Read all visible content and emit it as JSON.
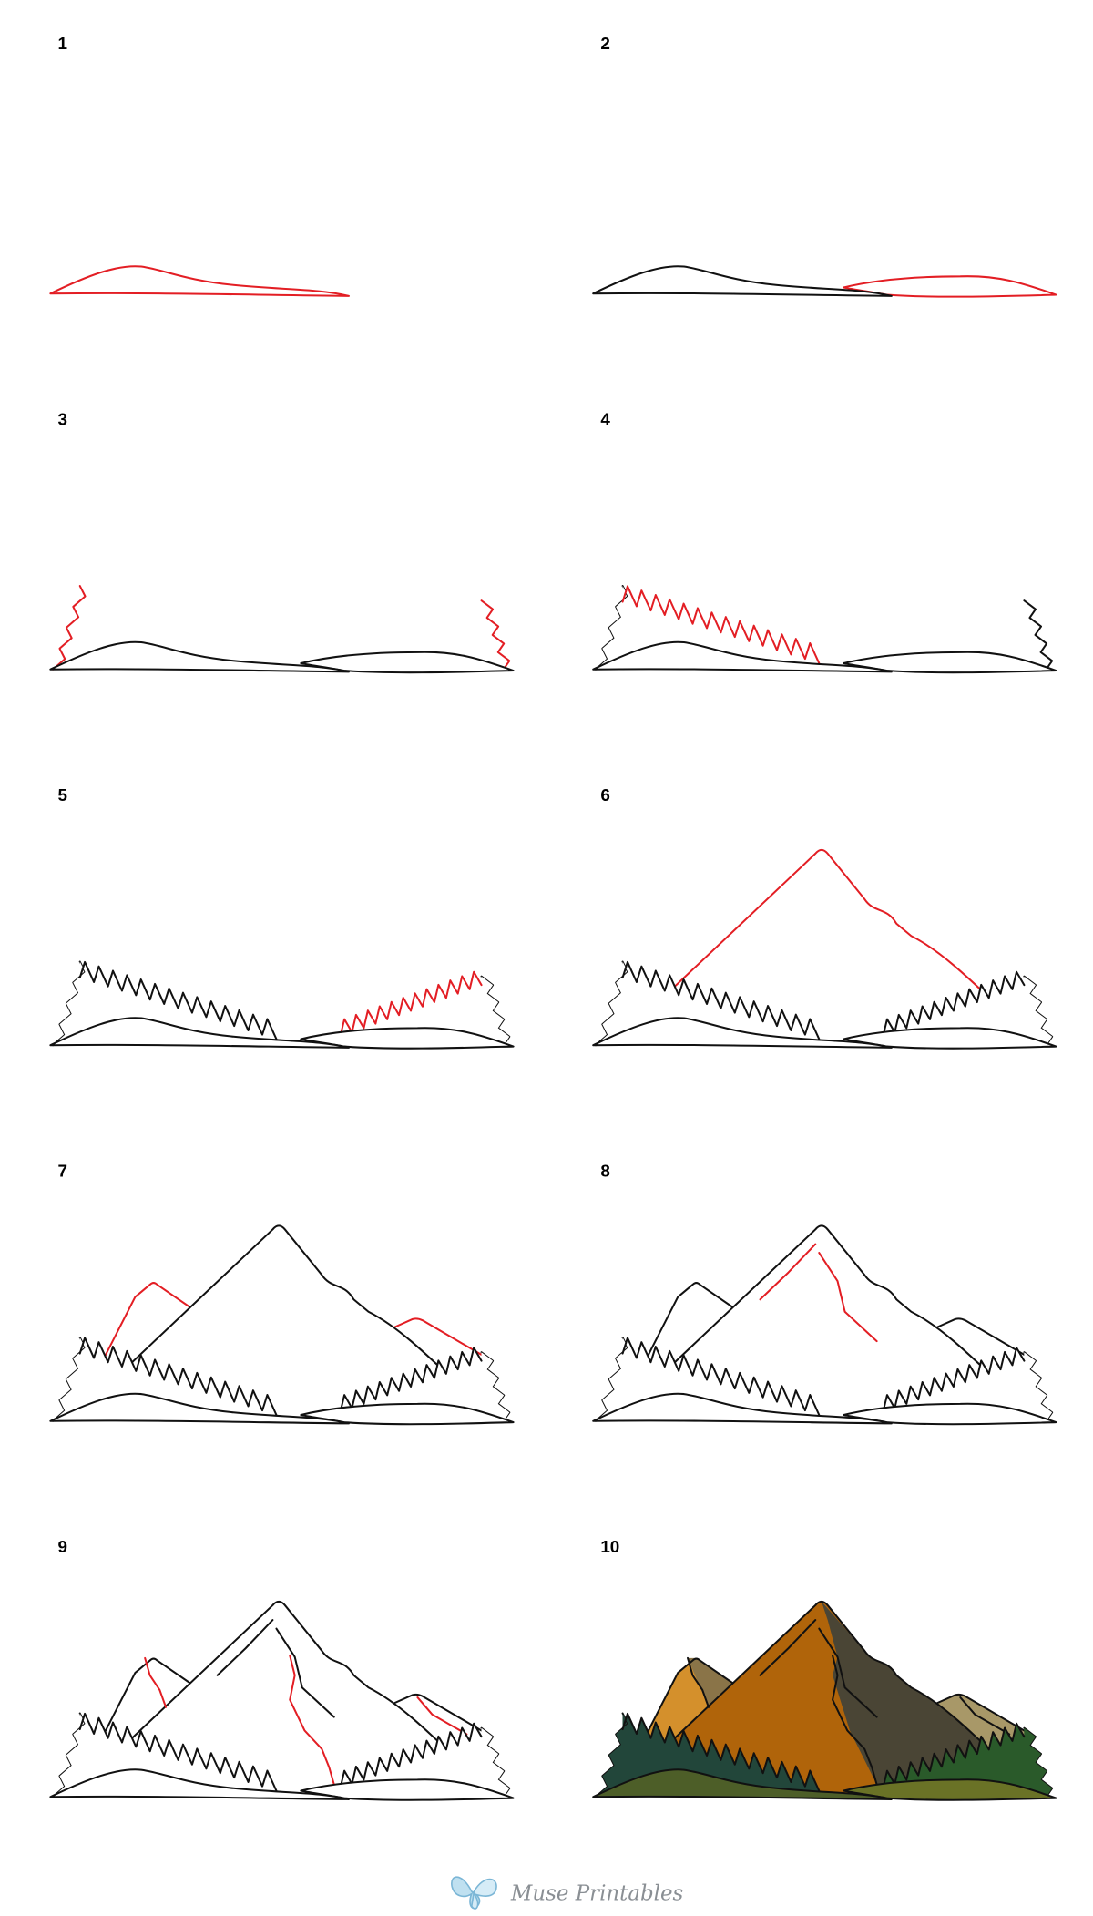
{
  "steps": [
    {
      "label": "1"
    },
    {
      "label": "2"
    },
    {
      "label": "3"
    },
    {
      "label": "4"
    },
    {
      "label": "5"
    },
    {
      "label": "6"
    },
    {
      "label": "7"
    },
    {
      "label": "8"
    },
    {
      "label": "9"
    },
    {
      "label": "10"
    }
  ],
  "footer": {
    "brand": "Muse Printables"
  }
}
